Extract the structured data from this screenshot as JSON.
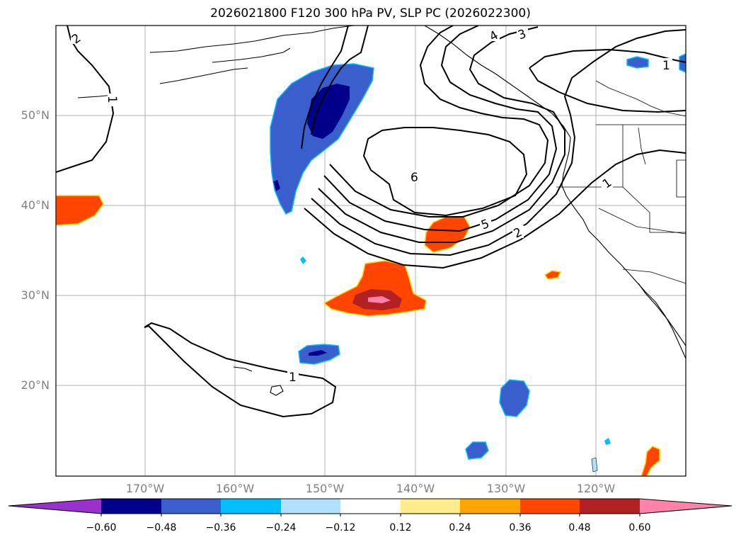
{
  "title": "2026021800 F120 300 hPa PV, SLP PC (2026022300)",
  "lat_labels": [
    "50°N",
    "40°N",
    "30°N",
    "20°N"
  ],
  "lon_labels": [
    "170°W",
    "160°W",
    "150°W",
    "140°W",
    "130°W",
    "120°W"
  ],
  "contour_labels": [
    "2",
    "1",
    "4",
    "3",
    "1",
    "6",
    "5",
    "2",
    "1",
    "1"
  ],
  "colorbar": {
    "ticks": [
      "−0.60",
      "−0.48",
      "−0.36",
      "−0.24",
      "−0.12",
      "0.12",
      "0.24",
      "0.36",
      "0.48",
      "0.60"
    ],
    "colors": [
      "#9932cc",
      "#00008b",
      "#3a5fcd",
      "#00bfff",
      "#b0e2ff",
      "#ffffff",
      "#ffec8b",
      "#ffa500",
      "#ff4500",
      "#b22222",
      "#ff82ab"
    ]
  }
}
